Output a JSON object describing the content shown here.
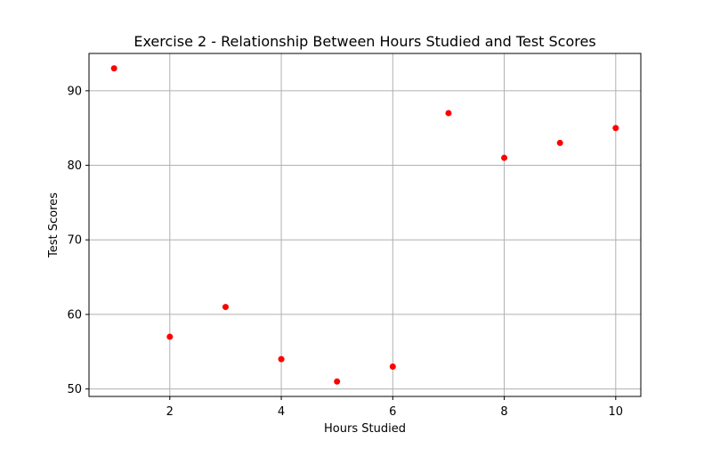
{
  "chart_data": {
    "type": "scatter",
    "title": "Exercise 2 - Relationship Between Hours Studied and Test Scores",
    "xlabel": "Hours Studied",
    "ylabel": "Test Scores",
    "x": [
      1,
      2,
      3,
      4,
      5,
      6,
      7,
      8,
      9,
      10
    ],
    "y": [
      93,
      57,
      61,
      54,
      51,
      53,
      87,
      81,
      83,
      85
    ],
    "xlim": [
      0.55,
      10.45
    ],
    "ylim": [
      49,
      95
    ],
    "xticks": [
      2,
      4,
      6,
      8,
      10
    ],
    "yticks": [
      50,
      60,
      70,
      80,
      90
    ],
    "xtick_labels": [
      "2",
      "4",
      "6",
      "8",
      "10"
    ],
    "ytick_labels": [
      "50",
      "60",
      "70",
      "80",
      "90"
    ],
    "grid": true,
    "legend": false,
    "marker_color": "#ff0000",
    "grid_color": "#b0b0b0"
  }
}
